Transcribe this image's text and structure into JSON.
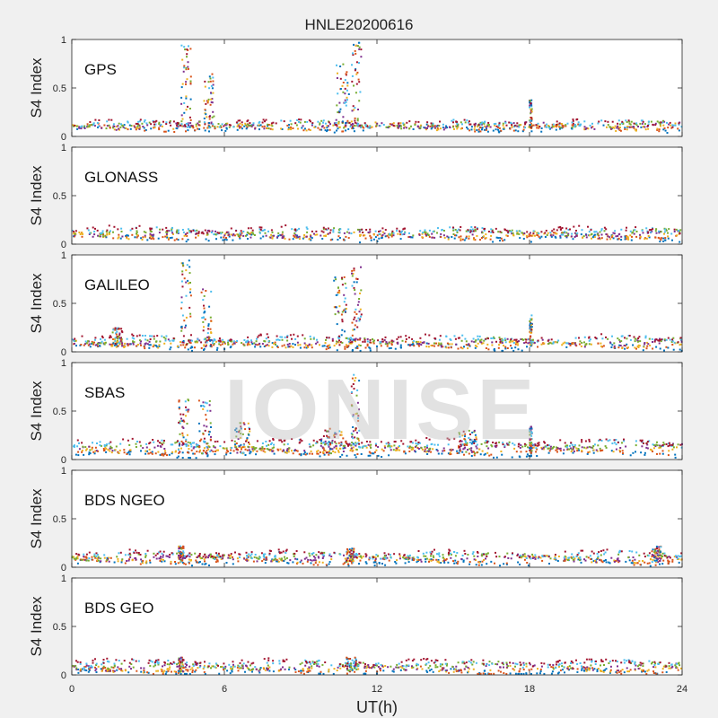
{
  "figure": {
    "title": "HNLE20200616",
    "xlabel": "UT(h)",
    "watermark": "IONISE"
  },
  "chart_data": {
    "type": "scatter",
    "xlim": [
      0,
      24
    ],
    "xticks": [
      0,
      6,
      12,
      18,
      24
    ],
    "ylim": [
      0,
      1
    ],
    "yticks": [
      0,
      0.5,
      1
    ],
    "ytick_labels": [
      "0",
      "0.5",
      "1"
    ],
    "ylabel": "S4 Index",
    "colors": [
      "#0072BD",
      "#D95319",
      "#EDB120",
      "#7E2F8E",
      "#77AC30",
      "#4DBEEE",
      "#A2142F"
    ],
    "panels": [
      {
        "name": "GPS",
        "baseline": [
          0.08,
          0.14
        ],
        "bursts": [
          {
            "x": [
              4.3,
              4.7
            ],
            "peak": 0.95
          },
          {
            "x": [
              5.2,
              5.6
            ],
            "peak": 0.65
          },
          {
            "x": [
              10.4,
              10.9
            ],
            "peak": 0.75
          },
          {
            "x": [
              11.0,
              11.4
            ],
            "peak": 0.98
          },
          {
            "x": [
              18.0,
              18.1
            ],
            "peak": 0.38
          }
        ]
      },
      {
        "name": "GLONASS",
        "baseline": [
          0.06,
          0.15
        ],
        "bursts": []
      },
      {
        "name": "GALILEO",
        "baseline": [
          0.05,
          0.14
        ],
        "bursts": [
          {
            "x": [
              1.6,
              2.0
            ],
            "peak": 0.25
          },
          {
            "x": [
              4.3,
              4.7
            ],
            "peak": 0.95
          },
          {
            "x": [
              5.1,
              5.5
            ],
            "peak": 0.65
          },
          {
            "x": [
              10.3,
              10.8
            ],
            "peak": 0.8
          },
          {
            "x": [
              11.0,
              11.4
            ],
            "peak": 0.9
          },
          {
            "x": [
              18.0,
              18.1
            ],
            "peak": 0.38
          }
        ]
      },
      {
        "name": "SBAS",
        "baseline": [
          0.06,
          0.18
        ],
        "bursts": [
          {
            "x": [
              4.2,
              4.6
            ],
            "peak": 0.62
          },
          {
            "x": [
              5.0,
              5.5
            ],
            "peak": 0.62
          },
          {
            "x": [
              6.4,
              7.0
            ],
            "peak": 0.38
          },
          {
            "x": [
              9.8,
              10.8
            ],
            "peak": 0.32
          },
          {
            "x": [
              11.0,
              11.3
            ],
            "peak": 0.9
          },
          {
            "x": [
              15.2,
              16.0
            ],
            "peak": 0.3
          },
          {
            "x": [
              18.0,
              18.1
            ],
            "peak": 0.38
          }
        ]
      },
      {
        "name": "BDS NGEO",
        "baseline": [
          0.05,
          0.14
        ],
        "bursts": [
          {
            "x": [
              4.2,
              4.4
            ],
            "peak": 0.22
          },
          {
            "x": [
              10.8,
              11.1
            ],
            "peak": 0.2
          },
          {
            "x": [
              22.8,
              23.2
            ],
            "peak": 0.22
          }
        ]
      },
      {
        "name": "BDS GEO",
        "baseline": [
          0.03,
          0.13
        ],
        "bursts": [
          {
            "x": [
              4.2,
              4.4
            ],
            "peak": 0.18
          },
          {
            "x": [
              10.8,
              11.2
            ],
            "peak": 0.18
          }
        ]
      }
    ]
  }
}
